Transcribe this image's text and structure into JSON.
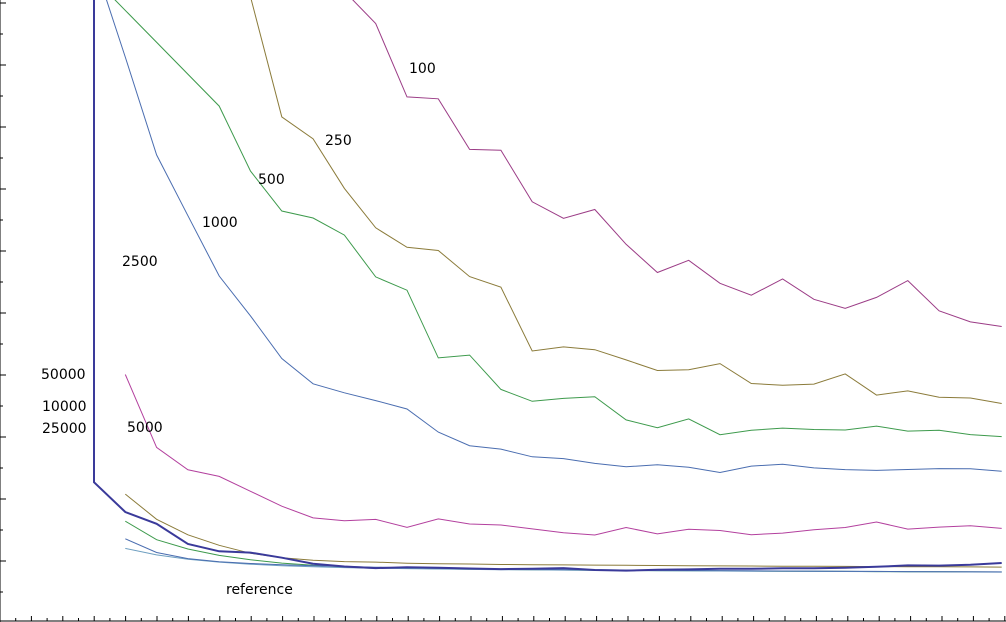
{
  "chart_data": {
    "type": "line",
    "title": "",
    "xlabel": "",
    "ylabel": "",
    "xlim": [
      0,
      29
    ],
    "ylim": [
      0,
      100
    ],
    "grid": false,
    "legend": "none",
    "x": [
      0,
      1,
      2,
      3,
      4,
      5,
      6,
      7,
      8,
      9,
      10,
      11,
      12,
      13,
      14,
      15,
      16,
      17,
      18,
      19,
      20,
      21,
      22,
      23,
      24,
      25,
      26,
      27,
      28,
      29
    ],
    "series": [
      {
        "name": "100",
        "color": "#9b3c86",
        "values": [
          null,
          null,
          null,
          null,
          null,
          null,
          null,
          null,
          102.58,
          96.93,
          84.05,
          83.72,
          74.84,
          74.7,
          65.65,
          62.76,
          64.3,
          58.19,
          53.25,
          55.38,
          51.35,
          49.26,
          52.13,
          48.55,
          46.94,
          48.88,
          51.83,
          46.52,
          44.58,
          43.77
        ]
      },
      {
        "name": "250",
        "color": "#8b7b3a",
        "values": [
          null,
          null,
          null,
          null,
          null,
          101.61,
          80.55,
          76.69,
          68.0,
          61.09,
          57.66,
          57.11,
          52.52,
          50.66,
          39.47,
          40.19,
          39.7,
          37.91,
          36.05,
          36.2,
          37.26,
          33.78,
          33.46,
          33.67,
          35.45,
          31.74,
          32.47,
          31.36,
          31.22,
          30.26
        ]
      },
      {
        "name": "500",
        "color": "#3d9a4c",
        "values": [
          104.82,
          null,
          null,
          null,
          82.43,
          71.03,
          64.03,
          62.8,
          59.8,
          52.48,
          50.14,
          38.27,
          38.76,
          32.73,
          30.65,
          31.15,
          31.46,
          27.38,
          26.01,
          27.57,
          24.79,
          25.56,
          25.94,
          25.71,
          25.61,
          26.29,
          25.42,
          25.57,
          24.81,
          24.45
        ]
      },
      {
        "name": "1000",
        "color": "#4a6db0",
        "values": [
          107.73,
          91.03,
          73.87,
          63.21,
          52.64,
          45.63,
          38.16,
          33.72,
          32.14,
          30.77,
          29.29,
          25.24,
          22.86,
          22.27,
          20.92,
          20.59,
          19.76,
          19.16,
          19.51,
          19.07,
          18.15,
          19.28,
          19.6,
          18.96,
          18.66,
          18.52,
          18.69,
          18.84,
          18.82,
          18.39
        ]
      },
      {
        "name": "2500",
        "color": "#b3409e",
        "values": [
          null,
          35.35,
          22.56,
          18.63,
          17.47,
          14.86,
          12.25,
          10.19,
          9.68,
          9.93,
          8.52,
          10.02,
          9.12,
          8.95,
          8.26,
          7.59,
          7.19,
          8.5,
          7.39,
          8.21,
          7.98,
          7.25,
          7.53,
          8.12,
          8.51,
          9.48,
          8.22,
          8.58,
          8.83,
          8.35
        ]
      },
      {
        "name": "5000",
        "color": "#8b7b3a",
        "values": [
          null,
          14.37,
          9.95,
          7.23,
          5.38,
          3.98,
          3.21,
          2.76,
          2.52,
          2.44,
          2.25,
          2.14,
          2.11,
          2.02,
          1.98,
          1.94,
          1.91,
          1.87,
          1.84,
          1.81,
          1.78,
          1.75,
          1.72,
          1.7,
          1.68,
          1.65,
          1.63,
          1.61,
          1.59,
          1.57
        ]
      },
      {
        "name": "10000",
        "color": "#3d9a4c",
        "values": [
          null,
          9.62,
          6.37,
          4.73,
          3.61,
          2.85,
          2.26,
          1.88,
          1.63,
          1.48,
          1.35,
          1.27,
          1.2,
          1.15,
          1.1,
          1.06,
          1.02,
          0.98,
          0.95,
          0.92,
          0.89,
          0.87,
          0.84,
          0.82,
          0.8,
          0.78,
          0.76,
          0.74,
          0.72,
          0.7
        ]
      },
      {
        "name": "25000",
        "color": "#6d9ec0",
        "values": [
          null,
          4.85,
          3.71,
          2.95,
          2.43,
          2.07,
          1.81,
          1.62,
          1.48,
          1.37,
          1.29,
          1.22,
          1.16,
          1.11,
          1.07,
          1.03,
          0.99,
          0.96,
          0.93,
          0.9,
          0.88,
          0.85,
          0.83,
          0.81,
          0.79,
          0.77,
          0.75,
          0.73,
          0.71,
          0.69
        ]
      },
      {
        "name": "50000",
        "color": "#4a6db0",
        "values": [
          null,
          6.52,
          4.13,
          3.06,
          2.51,
          2.2,
          1.98,
          1.81,
          1.67,
          1.55,
          1.45,
          1.37,
          1.3,
          1.23,
          1.18,
          1.13,
          1.09,
          1.05,
          1.01,
          0.97,
          0.94,
          0.91,
          0.88,
          0.86,
          0.83,
          0.81,
          0.78,
          0.76,
          0.74,
          0.72
        ]
      },
      {
        "name": "reference",
        "color": "#3a3a9a",
        "values": [
          16.45,
          11.23,
          9.15,
          5.61,
          4.34,
          4.1,
          3.21,
          2.15,
          1.67,
          1.39,
          1.54,
          1.44,
          1.31,
          1.21,
          1.27,
          1.39,
          1.06,
          0.95,
          1.11,
          1.15,
          1.26,
          1.27,
          1.35,
          1.37,
          1.45,
          1.61,
          1.86,
          1.82,
          1.97,
          2.28
        ]
      }
    ],
    "labels": {
      "s100": "100",
      "s250": "250",
      "s500": "500",
      "s1000": "1000",
      "s2500": "2500",
      "s5000": "5000",
      "s10000": "10000",
      "s25000": "25000",
      "s50000": "50000",
      "reference": "reference"
    }
  }
}
